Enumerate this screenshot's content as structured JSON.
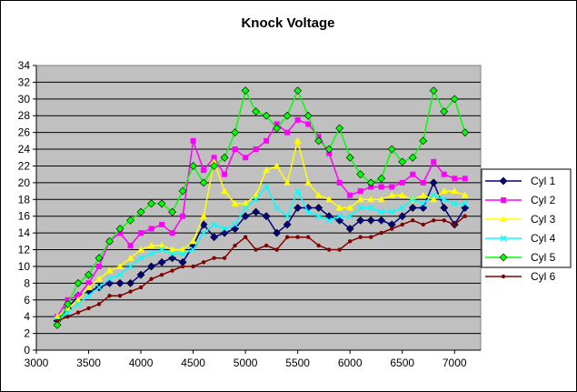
{
  "chart_data": {
    "type": "line",
    "title": "Knock Voltage",
    "xlabel": "",
    "ylabel": "",
    "xlim": [
      3000,
      7250
    ],
    "ylim": [
      0,
      34
    ],
    "xticks": [
      3000,
      3500,
      4000,
      4500,
      5000,
      5500,
      6000,
      6500,
      7000
    ],
    "yticks": [
      0,
      2,
      4,
      6,
      8,
      10,
      12,
      14,
      16,
      18,
      20,
      22,
      24,
      26,
      28,
      30,
      32,
      34
    ],
    "grid": "horizontal",
    "legend_position": "right",
    "plot_background": "#c0c0c0",
    "x": [
      3200,
      3300,
      3400,
      3500,
      3600,
      3700,
      3800,
      3900,
      4000,
      4100,
      4200,
      4300,
      4400,
      4500,
      4600,
      4700,
      4800,
      4900,
      5000,
      5100,
      5200,
      5300,
      5400,
      5500,
      5600,
      5700,
      5800,
      5900,
      6000,
      6100,
      6200,
      6300,
      6400,
      6500,
      6600,
      6700,
      6800,
      6900,
      7000,
      7100
    ],
    "series": [
      {
        "name": "Cyl 1",
        "color": "#000080",
        "marker": "diamond",
        "values": [
          3.5,
          5.0,
          6.5,
          7.0,
          7.5,
          8.0,
          8.0,
          8.0,
          9.0,
          10.0,
          10.5,
          11.0,
          10.5,
          12.5,
          15.0,
          13.5,
          14.0,
          14.5,
          16.0,
          16.5,
          16.0,
          14.0,
          15.0,
          17.0,
          17.0,
          17.0,
          16.0,
          15.5,
          14.5,
          15.5,
          15.5,
          15.5,
          15.0,
          16.0,
          17.0,
          17.0,
          20.0,
          17.0,
          15.0,
          17.0
        ]
      },
      {
        "name": "Cyl 2",
        "color": "#ff00ff",
        "marker": "square",
        "values": [
          4.0,
          6.0,
          6.5,
          8.0,
          10.0,
          13.0,
          14.0,
          12.5,
          14.0,
          14.5,
          15.0,
          14.0,
          16.0,
          25.0,
          21.5,
          23.0,
          21.0,
          24.0,
          23.0,
          24.0,
          25.0,
          27.0,
          26.0,
          27.5,
          27.0,
          25.5,
          23.5,
          20.0,
          18.5,
          19.0,
          19.5,
          19.5,
          19.5,
          20.0,
          21.0,
          20.0,
          22.5,
          21.0,
          20.5,
          20.5
        ]
      },
      {
        "name": "Cyl 3",
        "color": "#ffff00",
        "marker": "triangle",
        "values": [
          4.0,
          5.0,
          6.0,
          7.5,
          8.5,
          9.5,
          10.0,
          11.0,
          12.0,
          12.5,
          12.5,
          12.0,
          12.0,
          13.0,
          16.0,
          22.5,
          19.0,
          17.5,
          17.5,
          18.5,
          21.5,
          22.0,
          20.0,
          25.0,
          20.0,
          18.5,
          18.0,
          17.0,
          17.0,
          18.0,
          18.0,
          18.0,
          18.5,
          18.5,
          18.0,
          18.5,
          18.0,
          19.0,
          19.0,
          18.5
        ]
      },
      {
        "name": "Cyl 4",
        "color": "#00ffff",
        "marker": "x",
        "values": [
          3.5,
          4.5,
          5.5,
          6.5,
          7.5,
          8.5,
          9.0,
          10.0,
          11.0,
          11.5,
          12.0,
          11.5,
          11.5,
          12.0,
          14.0,
          15.0,
          14.5,
          15.0,
          17.0,
          18.0,
          19.5,
          17.0,
          16.0,
          19.0,
          16.5,
          16.0,
          15.5,
          16.0,
          16.0,
          17.0,
          17.0,
          16.5,
          16.5,
          17.0,
          18.0,
          17.5,
          18.5,
          18.0,
          17.5,
          17.5
        ]
      },
      {
        "name": "Cyl 5",
        "color": "#00ff00",
        "marker": "diamond",
        "values": [
          3.0,
          5.5,
          8.0,
          9.0,
          11.0,
          13.0,
          14.5,
          15.5,
          16.5,
          17.5,
          17.5,
          16.5,
          19.0,
          22.0,
          20.0,
          22.0,
          23.0,
          26.0,
          31.0,
          28.5,
          28.0,
          26.5,
          28.0,
          31.0,
          28.0,
          25.0,
          24.0,
          26.5,
          23.0,
          21.0,
          20.0,
          20.5,
          24.0,
          22.5,
          23.0,
          25.0,
          31.0,
          28.5,
          30.0,
          26.0
        ]
      },
      {
        "name": "Cyl 6",
        "color": "#800000",
        "marker": "circle",
        "values": [
          3.5,
          4.0,
          4.5,
          5.0,
          5.5,
          6.5,
          6.5,
          7.0,
          7.5,
          8.5,
          9.0,
          9.5,
          10.0,
          10.0,
          10.5,
          11.0,
          11.0,
          12.5,
          13.5,
          12.0,
          12.5,
          12.0,
          13.5,
          13.5,
          13.5,
          12.5,
          12.0,
          12.0,
          13.0,
          13.5,
          13.5,
          14.0,
          14.5,
          15.0,
          15.5,
          15.0,
          15.5,
          15.5,
          15.0,
          16.0
        ]
      }
    ]
  }
}
